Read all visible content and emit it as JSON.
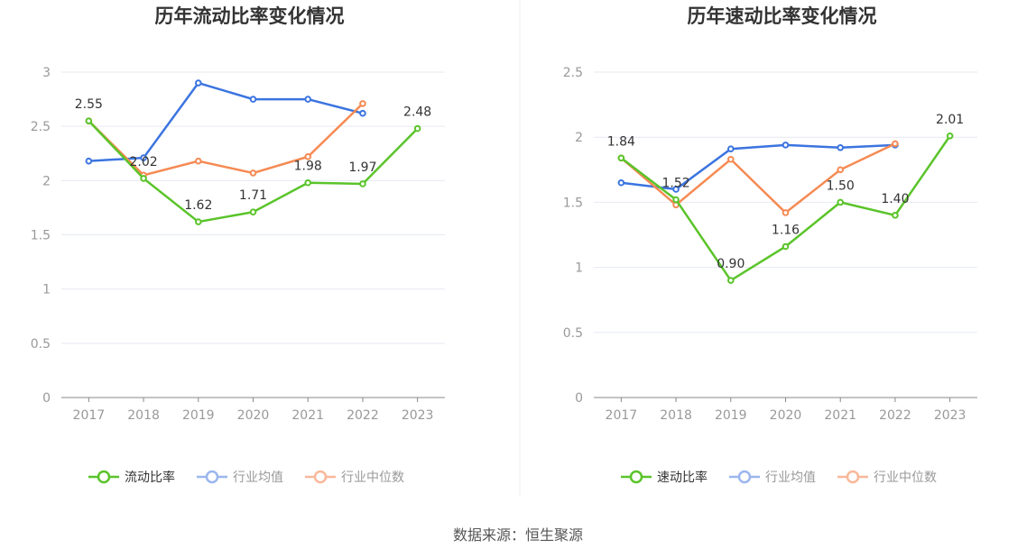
{
  "chart_data": [
    {
      "type": "line",
      "title": "历年流动比率变化情况",
      "categories": [
        "2017",
        "2018",
        "2019",
        "2020",
        "2021",
        "2022",
        "2023"
      ],
      "ylim": [
        0,
        3
      ],
      "yticks": [
        "0",
        "0.5",
        "1",
        "1.5",
        "2",
        "2.5",
        "3"
      ],
      "grid": true,
      "legend": "bottom",
      "series": [
        {
          "name": "流动比率",
          "color": "#5ac42a",
          "values": [
            2.55,
            2.02,
            1.62,
            1.71,
            1.98,
            1.97,
            2.48
          ],
          "labels": [
            "2.55",
            "2.02",
            "1.62",
            "1.71",
            "1.98",
            "1.97",
            "2.48"
          ]
        },
        {
          "name": "行业均值",
          "color": "#3b74e0",
          "values": [
            2.18,
            2.21,
            2.9,
            2.75,
            2.75,
            2.62,
            null
          ]
        },
        {
          "name": "行业中位数",
          "color": "#f58a53",
          "values": [
            2.55,
            2.05,
            2.18,
            2.07,
            2.22,
            2.71,
            null
          ]
        }
      ]
    },
    {
      "type": "line",
      "title": "历年速动比率变化情况",
      "categories": [
        "2017",
        "2018",
        "2019",
        "2020",
        "2021",
        "2022",
        "2023"
      ],
      "ylim": [
        0,
        2.5
      ],
      "yticks": [
        "0",
        "0.5",
        "1",
        "1.5",
        "2",
        "2.5"
      ],
      "grid": true,
      "legend": "bottom",
      "series": [
        {
          "name": "速动比率",
          "color": "#5ac42a",
          "values": [
            1.84,
            1.52,
            0.9,
            1.16,
            1.5,
            1.4,
            2.01
          ],
          "labels": [
            "1.84",
            "1.52",
            "0.90",
            "1.16",
            "1.50",
            "1.40",
            "2.01"
          ]
        },
        {
          "name": "行业均值",
          "color": "#3b74e0",
          "values": [
            1.65,
            1.6,
            1.91,
            1.94,
            1.92,
            1.94,
            null
          ]
        },
        {
          "name": "行业中位数",
          "color": "#f58a53",
          "values": [
            1.84,
            1.48,
            1.83,
            1.42,
            1.75,
            1.95,
            null
          ]
        }
      ]
    }
  ],
  "source": "数据来源：恒生聚源"
}
